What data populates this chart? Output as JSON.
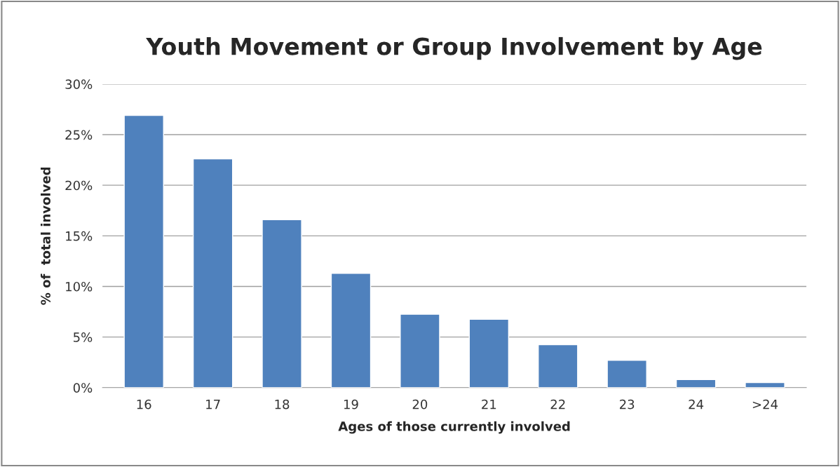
{
  "chart_data": {
    "type": "bar",
    "title": "Youth Movement or Group Involvement by Age",
    "xlabel": "Ages of those currently involved",
    "ylabel": "% of  total involved",
    "categories": [
      "16",
      "17",
      "18",
      "19",
      "20",
      "21",
      "22",
      "23",
      "24",
      ">24"
    ],
    "values": [
      26.9,
      22.6,
      16.6,
      11.3,
      7.25,
      6.75,
      4.25,
      2.7,
      0.8,
      0.5
    ],
    "color": "#4f81bd",
    "ylim": [
      0,
      30
    ],
    "yticks": [
      {
        "value": 0,
        "label": "0%"
      },
      {
        "value": 5,
        "label": "5%"
      },
      {
        "value": 10,
        "label": "10%"
      },
      {
        "value": 15,
        "label": "15%"
      },
      {
        "value": 20,
        "label": "20%"
      },
      {
        "value": 25,
        "label": "25%"
      },
      {
        "value": 30,
        "label": "30%"
      }
    ],
    "grid": "y"
  }
}
